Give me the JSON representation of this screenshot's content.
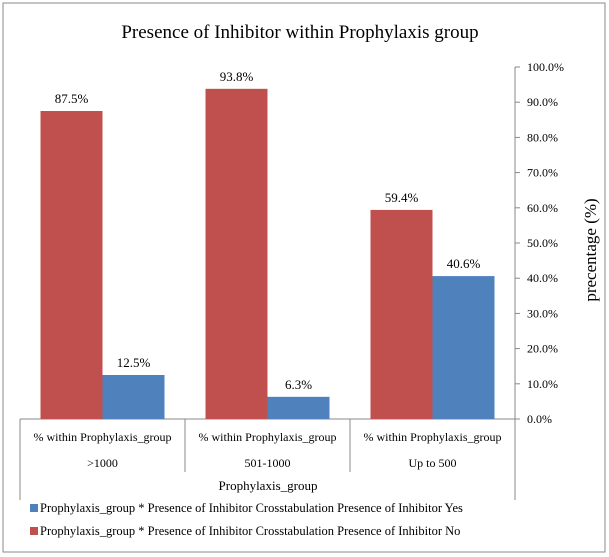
{
  "chart_data": {
    "type": "bar",
    "title": "Presence of Inhibitor within Prophylaxis group",
    "ylabel": "precentage (%)",
    "xlabel": "Prophylaxis_group",
    "ylim": [
      0,
      100
    ],
    "yticks": [
      "0.0%",
      "10.0%",
      "20.0%",
      "30.0%",
      "40.0%",
      "50.0%",
      "60.0%",
      "70.0%",
      "80.0%",
      "90.0%",
      "100.0%"
    ],
    "category_header": "% within Prophylaxis_group",
    "categories": [
      ">1000",
      "501-1000",
      "Up to 500"
    ],
    "series": [
      {
        "name": "Prophylaxis_group * Presence of Inhibitor Crosstabulation Presence of Inhibitor No",
        "color": "#c0504d",
        "values": [
          87.5,
          93.8,
          59.4
        ],
        "labels": [
          "87.5%",
          "93.8%",
          "59.4%"
        ]
      },
      {
        "name": "Prophylaxis_group * Presence of Inhibitor Crosstabulation Presence of Inhibitor Yes",
        "color": "#4f81bd",
        "values": [
          12.5,
          6.3,
          40.6
        ],
        "labels": [
          "12.5%",
          "6.3%",
          "40.6%"
        ]
      }
    ],
    "legend_order": [
      1,
      0
    ],
    "legend": "bottom"
  }
}
